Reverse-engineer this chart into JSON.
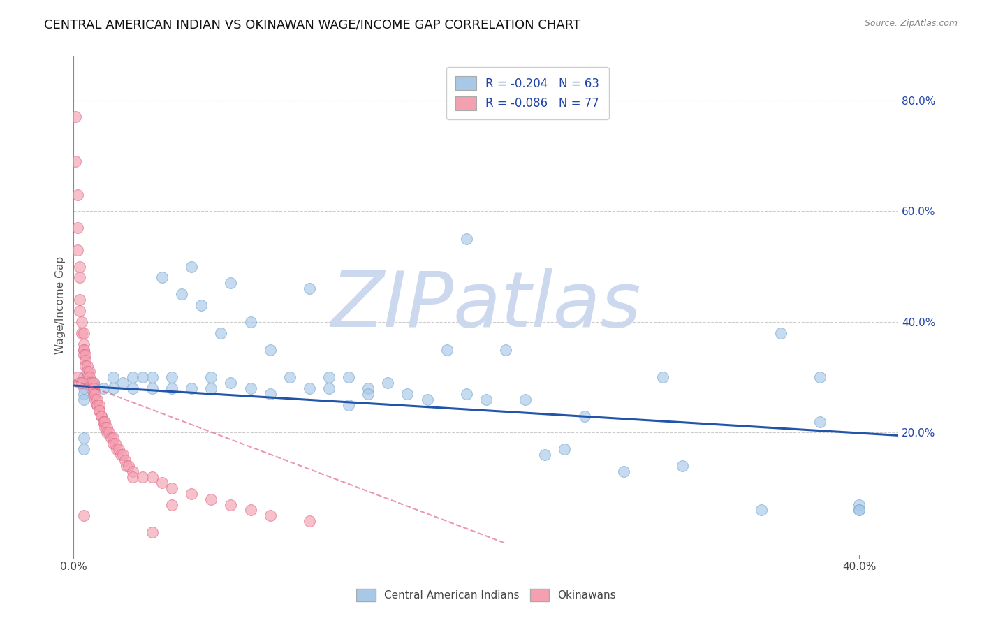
{
  "title": "CENTRAL AMERICAN INDIAN VS OKINAWAN WAGE/INCOME GAP CORRELATION CHART",
  "source": "Source: ZipAtlas.com",
  "ylabel": "Wage/Income Gap",
  "xlim": [
    0.0,
    0.42
  ],
  "ylim": [
    -0.02,
    0.88
  ],
  "xticks": [
    0.0,
    0.4
  ],
  "xticklabels": [
    "0.0%",
    "40.0%"
  ],
  "ytick_vals": [
    0.2,
    0.4,
    0.6,
    0.8
  ],
  "ytick_labels": [
    "20.0%",
    "40.0%",
    "60.0%",
    "80.0%"
  ],
  "watermark": "ZIPatlas",
  "legend_r_blue": "-0.204",
  "legend_n_blue": "63",
  "legend_r_pink": "-0.086",
  "legend_n_pink": "77",
  "blue_color": "#a8c8e8",
  "pink_color": "#f4a0b0",
  "blue_edge_color": "#7aabcf",
  "pink_edge_color": "#e07090",
  "blue_line_color": "#2255aa",
  "pink_line_color": "#dd5577",
  "blue_scatter_x": [
    0.005,
    0.005,
    0.005,
    0.005,
    0.01,
    0.015,
    0.02,
    0.02,
    0.025,
    0.03,
    0.03,
    0.035,
    0.04,
    0.04,
    0.045,
    0.05,
    0.05,
    0.055,
    0.06,
    0.06,
    0.065,
    0.07,
    0.07,
    0.075,
    0.08,
    0.08,
    0.09,
    0.09,
    0.1,
    0.1,
    0.11,
    0.12,
    0.12,
    0.13,
    0.13,
    0.14,
    0.14,
    0.15,
    0.15,
    0.16,
    0.17,
    0.18,
    0.19,
    0.2,
    0.2,
    0.21,
    0.22,
    0.23,
    0.24,
    0.25,
    0.26,
    0.28,
    0.3,
    0.31,
    0.35,
    0.36,
    0.38,
    0.38,
    0.4,
    0.4,
    0.4,
    0.005,
    0.005
  ],
  "blue_scatter_y": [
    0.3,
    0.28,
    0.27,
    0.26,
    0.29,
    0.28,
    0.3,
    0.28,
    0.29,
    0.3,
    0.28,
    0.3,
    0.3,
    0.28,
    0.48,
    0.3,
    0.28,
    0.45,
    0.5,
    0.28,
    0.43,
    0.3,
    0.28,
    0.38,
    0.47,
    0.29,
    0.4,
    0.28,
    0.35,
    0.27,
    0.3,
    0.46,
    0.28,
    0.3,
    0.28,
    0.3,
    0.25,
    0.28,
    0.27,
    0.29,
    0.27,
    0.26,
    0.35,
    0.55,
    0.27,
    0.26,
    0.35,
    0.26,
    0.16,
    0.17,
    0.23,
    0.13,
    0.3,
    0.14,
    0.06,
    0.38,
    0.22,
    0.3,
    0.07,
    0.06,
    0.06,
    0.19,
    0.17
  ],
  "pink_scatter_x": [
    0.001,
    0.001,
    0.002,
    0.002,
    0.002,
    0.003,
    0.003,
    0.003,
    0.003,
    0.004,
    0.004,
    0.005,
    0.005,
    0.005,
    0.005,
    0.005,
    0.006,
    0.006,
    0.006,
    0.007,
    0.007,
    0.007,
    0.008,
    0.008,
    0.008,
    0.009,
    0.009,
    0.01,
    0.01,
    0.01,
    0.01,
    0.011,
    0.011,
    0.012,
    0.012,
    0.012,
    0.013,
    0.013,
    0.013,
    0.014,
    0.014,
    0.015,
    0.015,
    0.016,
    0.016,
    0.017,
    0.017,
    0.018,
    0.019,
    0.02,
    0.02,
    0.021,
    0.022,
    0.023,
    0.024,
    0.025,
    0.026,
    0.027,
    0.028,
    0.03,
    0.03,
    0.035,
    0.04,
    0.045,
    0.05,
    0.06,
    0.07,
    0.08,
    0.09,
    0.1,
    0.12,
    0.002,
    0.003,
    0.004,
    0.005,
    0.04,
    0.05
  ],
  "pink_scatter_y": [
    0.77,
    0.69,
    0.63,
    0.57,
    0.53,
    0.5,
    0.48,
    0.44,
    0.42,
    0.4,
    0.38,
    0.38,
    0.36,
    0.35,
    0.35,
    0.34,
    0.34,
    0.33,
    0.32,
    0.32,
    0.31,
    0.3,
    0.31,
    0.3,
    0.29,
    0.29,
    0.28,
    0.28,
    0.29,
    0.28,
    0.27,
    0.27,
    0.26,
    0.26,
    0.25,
    0.25,
    0.25,
    0.24,
    0.24,
    0.23,
    0.23,
    0.22,
    0.22,
    0.22,
    0.21,
    0.21,
    0.2,
    0.2,
    0.19,
    0.19,
    0.18,
    0.18,
    0.17,
    0.17,
    0.16,
    0.16,
    0.15,
    0.14,
    0.14,
    0.13,
    0.12,
    0.12,
    0.12,
    0.11,
    0.1,
    0.09,
    0.08,
    0.07,
    0.06,
    0.05,
    0.04,
    0.3,
    0.29,
    0.29,
    0.05,
    0.02,
    0.07
  ],
  "blue_trend_x": [
    0.0,
    0.42
  ],
  "blue_trend_y": [
    0.285,
    0.195
  ],
  "pink_trend_x": [
    0.0,
    0.22
  ],
  "pink_trend_y": [
    0.295,
    0.0
  ],
  "background_color": "#ffffff",
  "grid_color": "#cccccc",
  "title_fontsize": 13,
  "watermark_color": "#ccd8ee",
  "watermark_fontsize": 80,
  "legend_color": "#2244aa"
}
